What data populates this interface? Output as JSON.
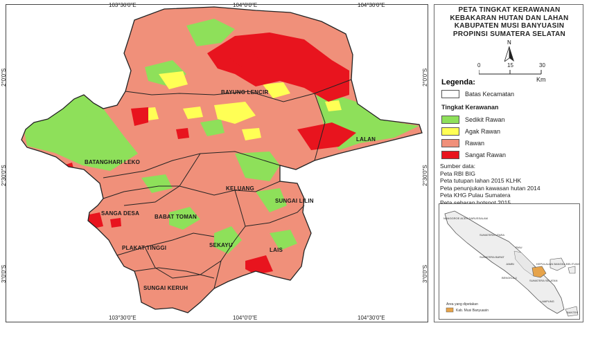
{
  "map": {
    "top_ticks": [
      "103°30'0\"E",
      "104°0'0\"E",
      "104°30'0\"E"
    ],
    "bottom_ticks": [
      "103°30'0\"E",
      "104°0'0\"E",
      "104°30'0\"E"
    ],
    "left_ticks": [
      "2°0'0\"S",
      "2°30'0\"S",
      "3°0'0\"S"
    ],
    "right_ticks": [
      "2°0'0\"S",
      "2°30'0\"S",
      "3°0'0\"S"
    ],
    "regions": {
      "bayung_lencir": "BAYUNG LENCIR",
      "lalan": "LALAN",
      "batanghari_leko": "BATANGHARI LEKO",
      "keluang": "KELUANG",
      "sungai_lilin": "SUNGAI LILIN",
      "sanga_desa": "SANGA DESA",
      "babat_toman": "BABAT TOMAN",
      "plakat_tinggi": "PLAKAT TINGGI",
      "sekayu": "SEKAYU",
      "lais": "LAIS",
      "sungai_keruh": "SUNGAI KERUH"
    },
    "colors": {
      "sedikit": "#8ee05a",
      "agak": "#ffff55",
      "rawan": "#f0907a",
      "sangat": "#e8141e",
      "boundary": "#222222"
    }
  },
  "panel": {
    "title_lines": [
      "PETA TINGKAT KERAWANAN",
      "KEBAKARAN HUTAN DAN LAHAN",
      "KABUPATEN MUSI BANYUASIN",
      "PROPINSI SUMATERA SELATAN"
    ],
    "north_label": "N",
    "scale": {
      "labels": [
        "0",
        "15",
        "30"
      ],
      "unit": "Km"
    },
    "legend_title": "Legenda:",
    "batas_label": "Batas Kecamatan",
    "tingkat_title": "Tingkat Kerawanan",
    "legend_items": [
      {
        "label": "Sedikit Rawan",
        "color": "#8ee05a"
      },
      {
        "label": "Agak Rawan",
        "color": "#ffff55"
      },
      {
        "label": "Rawan",
        "color": "#f0907a"
      },
      {
        "label": "Sangat Rawan",
        "color": "#e8141e"
      }
    ],
    "sources": [
      "Sumber data:",
      "Peta RBI BIG",
      "Peta tutupan lahan 2015 KLHK",
      "Peta penunjukan kawasan hutan 2014",
      "Peta KHG Pulau Sumatera",
      "Peta sebaran hotspot 2015"
    ],
    "inset": {
      "labels": {
        "aceh": "NANGGROE ACEH DARUSSALAM",
        "sumut": "SUMATERA UTARA",
        "riau": "RIAU",
        "sumbar": "SUMATERA BARAT",
        "jambi": "JAMBI",
        "babel": "KEPULAUAN BANGKA BELITUNG",
        "bengkulu": "BENGKULU",
        "sumsel": "SUMATERA SELATAN",
        "lampung": "LAMPUNG",
        "banten": "BANTEN"
      },
      "area_title": "Area yang dipetakan",
      "area_item": "Kab. Musi Banyuasin"
    }
  }
}
